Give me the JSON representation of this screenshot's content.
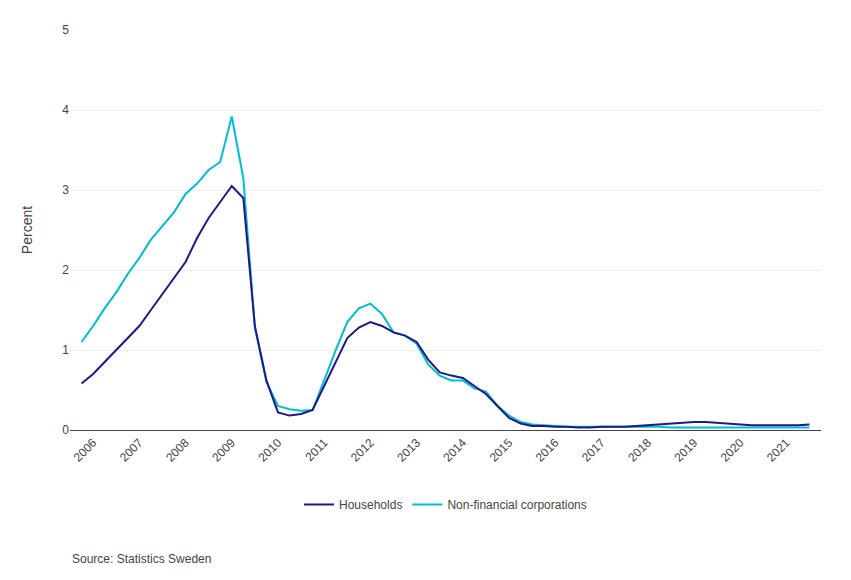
{
  "chart_data": {
    "type": "line",
    "y_label": "Percent",
    "annotations": [
      "Source: Statistics Sweden"
    ],
    "xlim": [
      2005.5,
      2021.75
    ],
    "xticks": [
      2006,
      2007,
      2008,
      2009,
      2010,
      2011,
      2012,
      2013,
      2014,
      2015,
      2016,
      2017,
      2018,
      2019,
      2020,
      2021
    ],
    "ylim": [
      0,
      5
    ],
    "yticks": [
      0,
      1,
      2,
      3,
      4,
      5
    ],
    "grid": true,
    "legend": "bottom",
    "x": [
      2005.75,
      2006.0,
      2006.25,
      2006.5,
      2006.75,
      2007.0,
      2007.25,
      2007.5,
      2007.75,
      2008.0,
      2008.25,
      2008.5,
      2008.75,
      2009.0,
      2009.25,
      2009.5,
      2009.75,
      2010.0,
      2010.25,
      2010.5,
      2010.75,
      2011.0,
      2011.25,
      2011.5,
      2011.75,
      2012.0,
      2012.25,
      2012.5,
      2012.75,
      2013.0,
      2013.25,
      2013.5,
      2013.75,
      2014.0,
      2014.25,
      2014.5,
      2014.75,
      2015.0,
      2015.25,
      2015.5,
      2015.75,
      2016.0,
      2016.25,
      2016.5,
      2016.75,
      2017.0,
      2017.25,
      2017.5,
      2017.75,
      2018.0,
      2018.25,
      2018.5,
      2018.75,
      2019.0,
      2019.25,
      2019.5,
      2019.75,
      2020.0,
      2020.25,
      2020.5,
      2020.75,
      2021.0,
      2021.25,
      2021.5
    ],
    "series": [
      {
        "name": "Non-financial corporations",
        "color": "#00bcd4",
        "values": [
          1.1,
          1.3,
          1.52,
          1.72,
          1.95,
          2.15,
          2.38,
          2.55,
          2.72,
          2.95,
          3.08,
          3.25,
          3.35,
          3.92,
          3.15,
          1.28,
          0.6,
          0.3,
          0.26,
          0.24,
          0.25,
          0.62,
          1.0,
          1.35,
          1.52,
          1.58,
          1.45,
          1.22,
          1.18,
          1.08,
          0.82,
          0.68,
          0.62,
          0.62,
          0.52,
          0.48,
          0.3,
          0.18,
          0.1,
          0.07,
          0.06,
          0.05,
          0.04,
          0.04,
          0.04,
          0.04,
          0.04,
          0.04,
          0.04,
          0.04,
          0.04,
          0.03,
          0.03,
          0.03,
          0.03,
          0.03,
          0.03,
          0.03,
          0.03,
          0.03,
          0.03,
          0.03,
          0.03,
          0.03
        ]
      },
      {
        "name": "Households",
        "color": "#1a1a8c",
        "values": [
          0.58,
          0.7,
          0.85,
          1.0,
          1.15,
          1.3,
          1.5,
          1.7,
          1.9,
          2.1,
          2.4,
          2.65,
          2.85,
          3.05,
          2.9,
          1.3,
          0.62,
          0.22,
          0.18,
          0.2,
          0.25,
          0.55,
          0.85,
          1.15,
          1.28,
          1.35,
          1.3,
          1.22,
          1.18,
          1.1,
          0.88,
          0.72,
          0.68,
          0.65,
          0.55,
          0.45,
          0.3,
          0.15,
          0.08,
          0.05,
          0.05,
          0.04,
          0.04,
          0.03,
          0.03,
          0.04,
          0.04,
          0.04,
          0.05,
          0.06,
          0.07,
          0.08,
          0.09,
          0.1,
          0.1,
          0.09,
          0.08,
          0.07,
          0.06,
          0.06,
          0.06,
          0.06,
          0.06,
          0.07
        ]
      }
    ]
  }
}
